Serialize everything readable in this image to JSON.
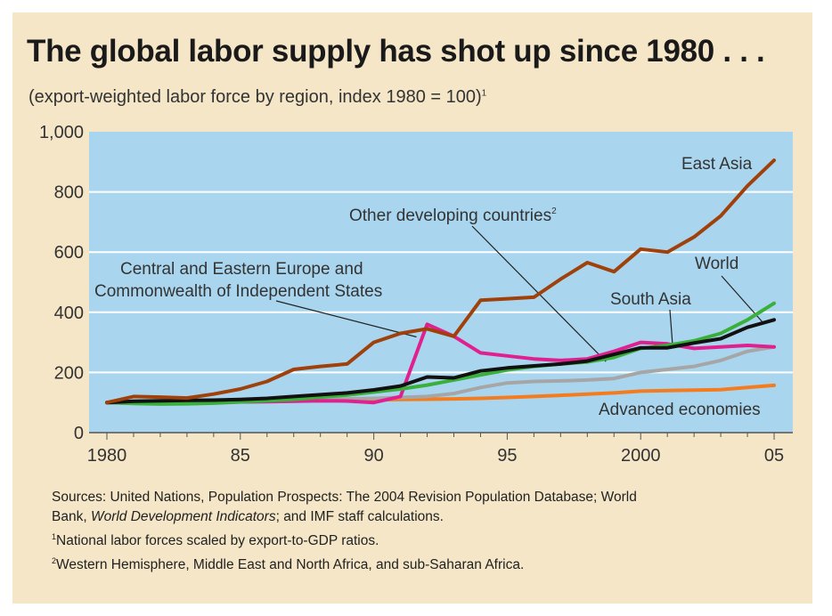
{
  "chart_data": {
    "type": "line",
    "title": "The global labor supply has shot up since 1980 . . .",
    "subtitle": "(export-weighted labor force by region, index 1980 = 100)",
    "subtitle_note": "1",
    "x": [
      1980,
      1981,
      1982,
      1983,
      1984,
      1985,
      1986,
      1987,
      1988,
      1989,
      1990,
      1991,
      1992,
      1993,
      1994,
      1995,
      1996,
      1997,
      1998,
      1999,
      2000,
      2001,
      2002,
      2003,
      2004,
      2005
    ],
    "x_ticks": [
      1980,
      1985,
      1990,
      1995,
      2000,
      2005
    ],
    "x_tick_labels": [
      "1980",
      "85",
      "90",
      "95",
      "2000",
      "05"
    ],
    "y_ticks": [
      0,
      200,
      400,
      600,
      800,
      1000
    ],
    "y_tick_labels": [
      "0",
      "200",
      "400",
      "600",
      "800",
      "1,000"
    ],
    "ylim": [
      0,
      1000
    ],
    "grid": true,
    "series": [
      {
        "name": "Advanced economies",
        "color": "#f47c20",
        "values": [
          100,
          100,
          101,
          102,
          103,
          104,
          105,
          106,
          107,
          108,
          109,
          110,
          111,
          112,
          114,
          117,
          120,
          124,
          128,
          132,
          138,
          140,
          141,
          143,
          150,
          157
        ]
      },
      {
        "name": "South Asia",
        "color": "#a6a6a6",
        "values": [
          100,
          100,
          101,
          102,
          104,
          106,
          107,
          108,
          110,
          112,
          114,
          117,
          120,
          130,
          150,
          165,
          170,
          172,
          175,
          180,
          200,
          210,
          220,
          240,
          270,
          285
        ]
      },
      {
        "name": "Central and Eastern Europe and Commonwealth of Independent States",
        "color": "#e0208f",
        "values": [
          100,
          98,
          99,
          100,
          101,
          102,
          103,
          104,
          106,
          105,
          100,
          120,
          360,
          320,
          265,
          255,
          245,
          240,
          245,
          270,
          300,
          295,
          280,
          285,
          290,
          285
        ]
      },
      {
        "name": "Other developing countries",
        "color": "#3aaf3a",
        "values": [
          100,
          97,
          95,
          96,
          98,
          102,
          106,
          110,
          118,
          125,
          135,
          145,
          158,
          175,
          192,
          208,
          220,
          228,
          235,
          250,
          280,
          290,
          305,
          330,
          375,
          430
        ]
      },
      {
        "name": "World",
        "color": "#111111",
        "values": [
          100,
          104,
          106,
          107,
          108,
          110,
          114,
          120,
          126,
          132,
          142,
          155,
          185,
          182,
          205,
          215,
          222,
          228,
          238,
          260,
          282,
          282,
          298,
          312,
          350,
          375
        ]
      },
      {
        "name": "East Asia",
        "color": "#a0400a",
        "values": [
          100,
          120,
          118,
          115,
          128,
          145,
          170,
          210,
          220,
          228,
          300,
          330,
          345,
          320,
          440,
          445,
          450,
          510,
          565,
          535,
          610,
          600,
          650,
          720,
          820,
          905
        ]
      }
    ],
    "annotations": [
      {
        "text": "East Asia"
      },
      {
        "text": "Other developing countries",
        "note": "2"
      },
      {
        "text": "Central and Eastern Europe and"
      },
      {
        "text": "Commonwealth of Independent States"
      },
      {
        "text": "World"
      },
      {
        "text": "South Asia"
      },
      {
        "text": "Advanced economies"
      }
    ]
  },
  "sources": {
    "line1": "Sources: United Nations, Population Prospects: The 2004 Revision Population Database; World",
    "line2_a": "Bank, ",
    "line2_italic": "World Development Indicators",
    "line2_b": "; and IMF staff calculations.",
    "note1_num": "1",
    "note1": "National labor forces scaled by export-to-GDP ratios.",
    "note2_num": "2",
    "note2": "Western Hemisphere, Middle East and North Africa, and sub-Saharan Africa."
  }
}
